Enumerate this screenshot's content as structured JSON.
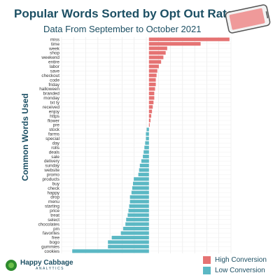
{
  "header": {
    "title": "Popular Words Sorted by Opt Out Rate",
    "subtitle": "Data From September to October 2021"
  },
  "brand": {
    "name": "Happy Cabbage",
    "sub": "ANALYTICS"
  },
  "phone_icon": "phone-icon",
  "colors": {
    "high": "#e57373",
    "low": "#5bb8c4"
  },
  "chart_data": {
    "type": "bar",
    "orientation": "horizontal",
    "title": "Popular Words Sorted by Opt Out Rate",
    "subtitle": "Data From September to October 2021",
    "xlabel": "",
    "ylabel": "Common Words Used",
    "xlim": [
      -115,
      108
    ],
    "grid": true,
    "legend_position": "bottom-right",
    "categories": [
      "miss",
      "time",
      "week",
      "shop",
      "weekend",
      "entire",
      "labor",
      "save",
      "checkout",
      "code",
      "friday",
      "halloween",
      "branded",
      "monday",
      "txt ty",
      "received",
      "enjoy",
      "https",
      "flower",
      "pre",
      "stock",
      "farms",
      "special",
      "day",
      "rolls",
      "deals",
      "sale",
      "delivery",
      "sunday",
      "website",
      "promo",
      "products",
      "buy",
      "check",
      "happy",
      "drop",
      "menu",
      "starting",
      "price",
      "treat",
      "select",
      "chocolates",
      "pm",
      "favorites",
      "free",
      "bogo",
      "gummies",
      "cookies"
    ],
    "values": [
      106,
      68,
      24,
      22,
      19,
      16,
      13,
      11,
      10,
      9,
      9,
      8,
      7,
      7,
      6,
      5,
      4,
      3,
      2,
      1,
      -3,
      -4,
      -4,
      -5,
      -6,
      -7,
      -8,
      -10,
      -12,
      -13,
      -14,
      -20,
      -21,
      -22,
      -23,
      -25,
      -25,
      -26,
      -27,
      -28,
      -30,
      -31,
      -34,
      -37,
      -49,
      -54,
      -54,
      -101
    ],
    "series": [
      {
        "name": "High Conversion",
        "color": "#e57373"
      },
      {
        "name": "Low Conversion",
        "color": "#5bb8c4"
      }
    ]
  }
}
